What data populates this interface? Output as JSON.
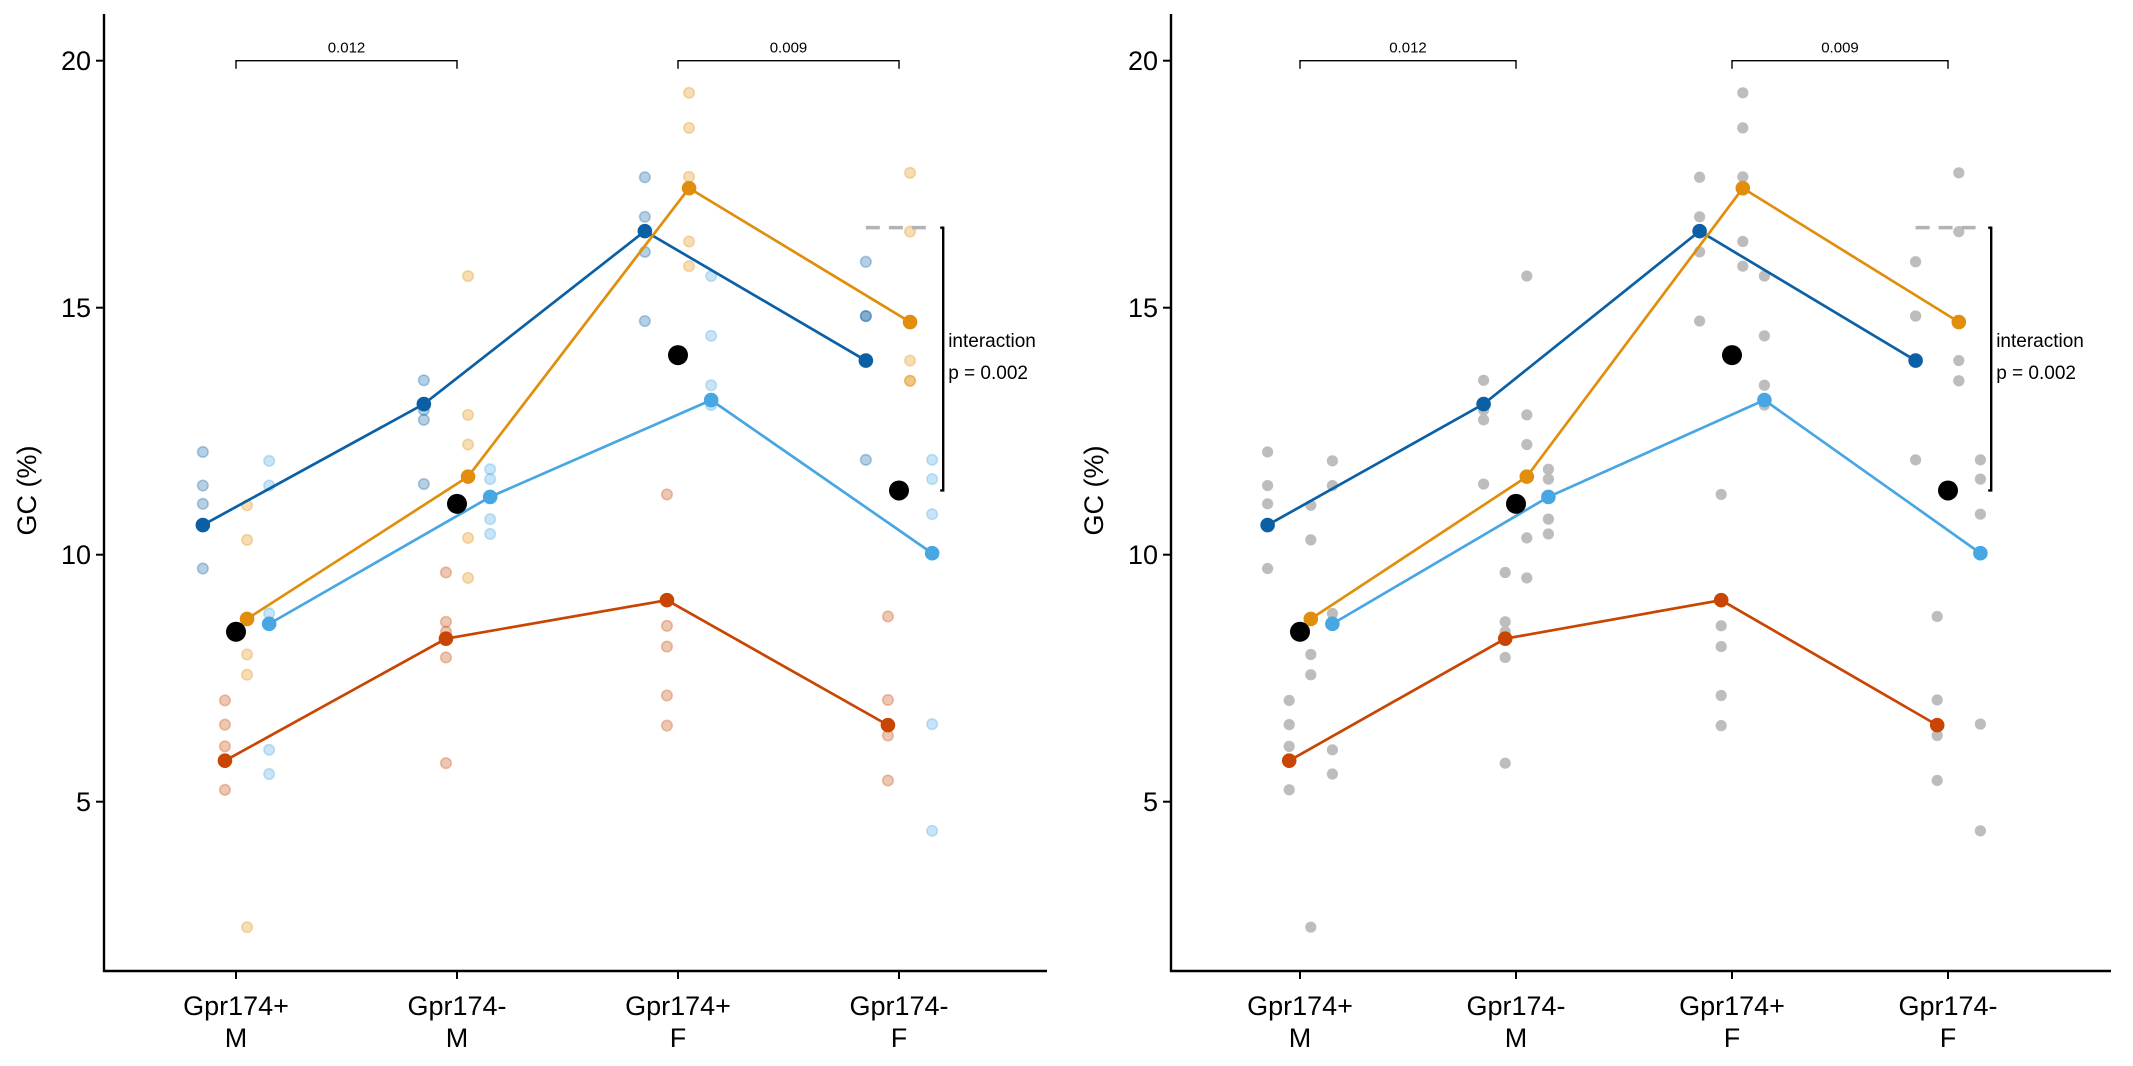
{
  "chart_data": [
    {
      "type": "line",
      "panel": "left",
      "ylabel": "GC (%)",
      "xlabel": "",
      "ylim": [
        1.6,
        20.9
      ],
      "yticks": [
        5,
        10,
        15,
        20
      ],
      "grid": false,
      "categories": [
        "Gpr174+\nM",
        "Gpr174-\nM",
        "Gpr174+\nF",
        "Gpr174-\nF"
      ],
      "individual_point_style": "series-colored, translucent",
      "series": [
        {
          "color": "#0a5fa5",
          "means": [
            10.6,
            13.05,
            16.55,
            13.93
          ],
          "points": [
            [
              12.08,
              11.4,
              11.03,
              9.72
            ],
            [
              13.53,
              12.93,
              12.73,
              11.43
            ],
            [
              17.64,
              16.84,
              16.13,
              14.73
            ],
            [
              15.93,
              14.83,
              14.83,
              11.92
            ]
          ]
        },
        {
          "color": "#c84503",
          "means": [
            5.83,
            8.3,
            9.08,
            6.55
          ],
          "points": [
            [
              7.05,
              6.56,
              6.12,
              5.24
            ],
            [
              9.64,
              8.64,
              8.44,
              7.92,
              5.78
            ],
            [
              11.22,
              8.56,
              8.14,
              7.15,
              6.54
            ],
            [
              8.75,
              7.06,
              6.34,
              5.43
            ]
          ]
        },
        {
          "color": "#e08e0b",
          "means": [
            8.7,
            11.58,
            17.42,
            14.71
          ],
          "points": [
            [
              11.0,
              10.3,
              7.98,
              7.57,
              2.46
            ],
            [
              15.64,
              12.83,
              12.23,
              10.34,
              9.53
            ],
            [
              19.35,
              18.64,
              17.65,
              16.34,
              15.84
            ],
            [
              17.73,
              16.54,
              13.93,
              13.52,
              13.52
            ]
          ]
        },
        {
          "color": "#48a6e3",
          "means": [
            8.6,
            11.17,
            13.13,
            10.03
          ],
          "points": [
            [
              11.9,
              11.4,
              8.81,
              6.05,
              5.56
            ],
            [
              11.73,
              11.53,
              10.72,
              10.42
            ],
            [
              15.64,
              14.43,
              13.43,
              13.03
            ],
            [
              11.92,
              11.53,
              10.82,
              6.57,
              4.41
            ]
          ]
        }
      ],
      "overall_means": {
        "color": "#000000",
        "values": [
          8.44,
          11.03,
          14.04,
          11.3
        ]
      },
      "comparisons": [
        {
          "from": 0,
          "to": 1,
          "y": 20,
          "label": "0.012"
        },
        {
          "from": 2,
          "to": 3,
          "y": 20,
          "label": "0.009"
        }
      ],
      "interaction": {
        "reference_y": 16.62,
        "to_y": 11.3,
        "reference_color": "#b3b3b3",
        "label": "interaction",
        "p_label": "p = 0.002"
      }
    },
    {
      "type": "line",
      "panel": "right",
      "ylabel": "GC (%)",
      "xlabel": "",
      "ylim": [
        1.6,
        20.9
      ],
      "yticks": [
        5,
        10,
        15,
        20
      ],
      "grid": false,
      "categories": [
        "Gpr174+\nM",
        "Gpr174-\nM",
        "Gpr174+\nF",
        "Gpr174-\nF"
      ],
      "individual_point_style": "gray",
      "point_color": "#bdbdbd",
      "series": [
        {
          "color": "#0a5fa5",
          "means": [
            10.6,
            13.05,
            16.55,
            13.93
          ],
          "points": [
            [
              12.08,
              11.4,
              11.03,
              9.72
            ],
            [
              13.53,
              12.93,
              12.73,
              11.43
            ],
            [
              17.64,
              16.84,
              16.13,
              14.73
            ],
            [
              15.93,
              14.83,
              14.83,
              11.92
            ]
          ]
        },
        {
          "color": "#c84503",
          "means": [
            5.83,
            8.3,
            9.08,
            6.55
          ],
          "points": [
            [
              7.05,
              6.56,
              6.12,
              5.24
            ],
            [
              9.64,
              8.64,
              8.44,
              7.92,
              5.78
            ],
            [
              11.22,
              8.56,
              8.14,
              7.15,
              6.54
            ],
            [
              8.75,
              7.06,
              6.34,
              5.43
            ]
          ]
        },
        {
          "color": "#e08e0b",
          "means": [
            8.7,
            11.58,
            17.42,
            14.71
          ],
          "points": [
            [
              11.0,
              10.3,
              7.98,
              7.57,
              2.46
            ],
            [
              15.64,
              12.83,
              12.23,
              10.34,
              9.53
            ],
            [
              19.35,
              18.64,
              17.65,
              16.34,
              15.84
            ],
            [
              17.73,
              16.54,
              13.93,
              13.52,
              13.52
            ]
          ]
        },
        {
          "color": "#48a6e3",
          "means": [
            8.6,
            11.17,
            13.13,
            10.03
          ],
          "points": [
            [
              11.9,
              11.4,
              8.81,
              6.05,
              5.56
            ],
            [
              11.73,
              11.53,
              10.72,
              10.42
            ],
            [
              15.64,
              14.43,
              13.43,
              13.03
            ],
            [
              11.92,
              11.53,
              10.82,
              6.57,
              4.41
            ]
          ]
        }
      ],
      "overall_means": {
        "color": "#000000",
        "values": [
          8.44,
          11.03,
          14.04,
          11.3
        ]
      },
      "comparisons": [
        {
          "from": 0,
          "to": 1,
          "y": 20,
          "label": "0.012"
        },
        {
          "from": 2,
          "to": 3,
          "y": 20,
          "label": "0.009"
        }
      ],
      "interaction": {
        "reference_y": 16.62,
        "to_y": 11.3,
        "reference_color": "#b3b3b3",
        "label": "interaction",
        "p_label": "p = 0.002"
      }
    }
  ]
}
